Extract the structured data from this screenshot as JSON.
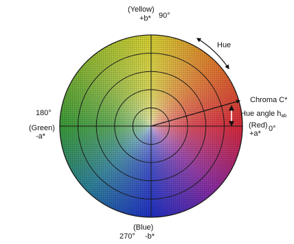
{
  "top": {
    "name": "(Yellow)",
    "axis": "+b*",
    "degree": "90°"
  },
  "bottom": {
    "name": "(Blue)",
    "degree": "270°",
    "axis": "-b*"
  },
  "left": {
    "degree": "180°",
    "name": "(Green)",
    "axis": "-a*"
  },
  "right": {
    "name": "(Red)",
    "axis": "+a*",
    "degree": "0°"
  },
  "hue_label": "Hue",
  "chroma_label": "Chroma C*",
  "hue_angle_label": "Hue angle h",
  "hue_angle_subscript": "ab",
  "colors": {
    "yellow": "#d8d232",
    "green": "#3a9a38",
    "blue": "#1d2fc4",
    "red": "#d8283a",
    "grid_line": "#1a1a1a",
    "arrow": "#111111",
    "hue_angle_marker": "#ffffff"
  },
  "diagram": {
    "concentric_circle_count": 5
  }
}
